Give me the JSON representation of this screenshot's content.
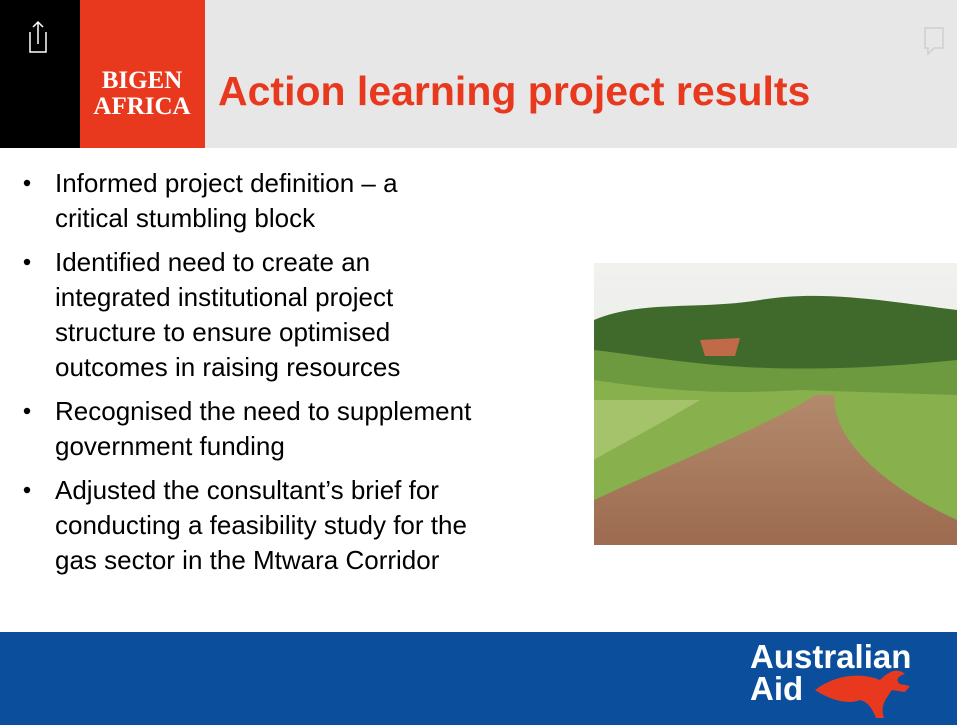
{
  "header": {
    "title": "Action learning project results",
    "logo": [
      "BIGEN",
      "AFRICA"
    ]
  },
  "bullets": [
    [
      "Informed project definition – a",
      "critical stumbling block"
    ],
    [
      "Identified need to create an",
      "integrated institutional project",
      "structure to ensure optimised",
      "outcomes in raising resources"
    ],
    [
      "Recognised the need to supplement",
      "government funding"
    ],
    [
      "Adjusted the consultant’s brief for",
      "conducting a feasibility study for the",
      "gas sector in the Mtwara Corridor"
    ]
  ],
  "footer": {
    "logo": [
      "Australian",
      "Aid"
    ]
  }
}
